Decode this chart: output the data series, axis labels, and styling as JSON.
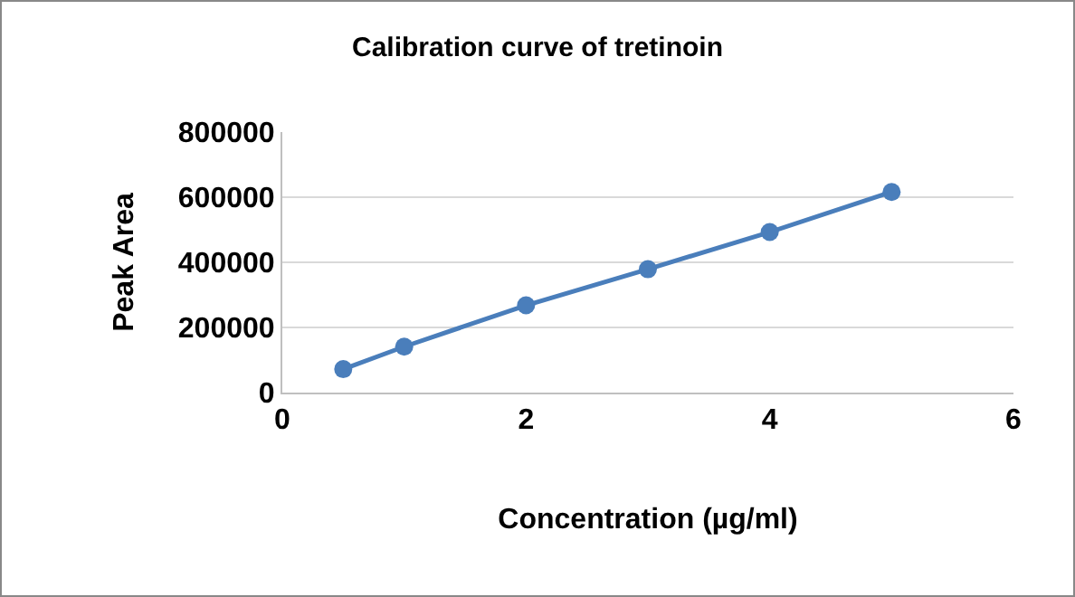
{
  "chart_data": {
    "type": "line",
    "title": "Calibration curve of tretinoin",
    "xlabel": "Concentration (µg/ml)",
    "ylabel": "Peak Area",
    "x": [
      0.5,
      1,
      2,
      3,
      4,
      5
    ],
    "series": [
      {
        "color": "#4a7ebb",
        "values": [
          72000,
          141000,
          268000,
          379000,
          493000,
          616000
        ]
      }
    ],
    "xlim": [
      0,
      6
    ],
    "xticks": [
      0,
      2,
      4,
      6
    ],
    "ylim": [
      0,
      800000
    ],
    "yticks": [
      0,
      200000,
      400000,
      600000,
      800000
    ],
    "grid": "y",
    "marker": "circle",
    "line_style": "solid"
  }
}
